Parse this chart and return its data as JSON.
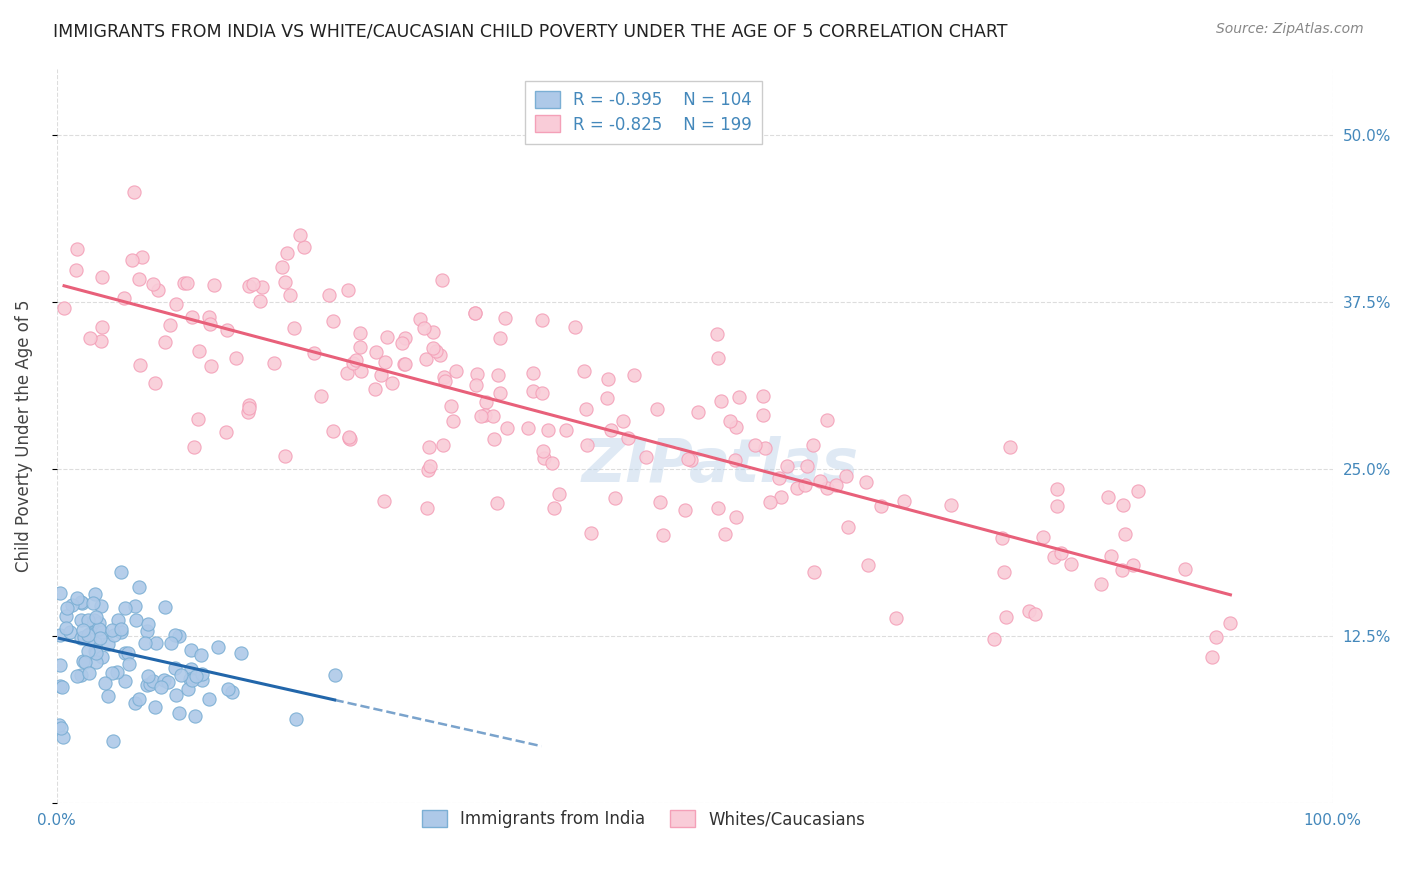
{
  "title": "IMMIGRANTS FROM INDIA VS WHITE/CAUCASIAN CHILD POVERTY UNDER THE AGE OF 5 CORRELATION CHART",
  "source": "Source: ZipAtlas.com",
  "ylabel": "Child Poverty Under the Age of 5",
  "xlim": [
    0.0,
    1.0
  ],
  "ylim": [
    0.0,
    0.55
  ],
  "yticks": [
    0.0,
    0.125,
    0.25,
    0.375,
    0.5
  ],
  "ytick_labels": [
    "",
    "12.5%",
    "25.0%",
    "37.5%",
    "50.0%"
  ],
  "xtick_labels": [
    "0.0%",
    "100.0%"
  ],
  "india_fill_color": "#aec9e8",
  "india_edge_color": "#7bafd4",
  "india_line_color": "#2266aa",
  "white_fill_color": "#f9ccd8",
  "white_edge_color": "#f4a0b8",
  "white_line_color": "#e8607a",
  "legend_india_label": "Immigrants from India",
  "legend_white_label": "Whites/Caucasians",
  "india_R": -0.395,
  "india_N": 104,
  "white_R": -0.825,
  "white_N": 199,
  "watermark": "ZIPatlas",
  "background_color": "#ffffff",
  "grid_color": "#dddddd",
  "title_color": "#222222",
  "axis_label_color": "#4488bb",
  "legend_text_color": "#4488bb"
}
